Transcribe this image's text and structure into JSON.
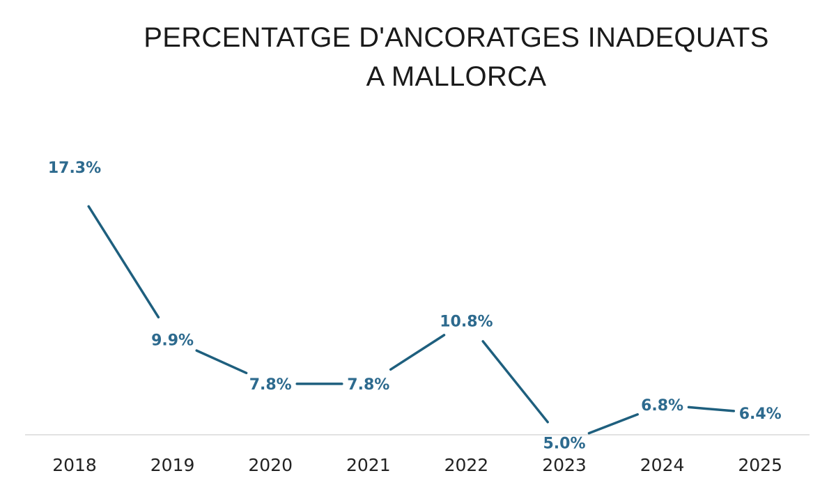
{
  "chart_data": {
    "type": "line",
    "title": "PERCENTATGE D'ANCORATGES INADEQUATS A MALLORCA",
    "title_lines": [
      "PERCENTATGE D'ANCORATGES INADEQUATS",
      "A MALLORCA"
    ],
    "categories": [
      "2018",
      "2019",
      "2020",
      "2021",
      "2022",
      "2023",
      "2024",
      "2025"
    ],
    "values": [
      17.3,
      9.9,
      7.8,
      7.8,
      10.8,
      5.0,
      6.8,
      6.4
    ],
    "data_labels": [
      "17.3%",
      "9.9%",
      "7.8%",
      "7.8%",
      "10.8%",
      "5.0%",
      "6.8%",
      "6.4%"
    ],
    "xlabel": "",
    "ylabel": "",
    "grid": false,
    "legend": "none",
    "line_color": "#1e5f7e",
    "label_color": "#2d6a8e",
    "axis_color": "#d9d9d9"
  }
}
